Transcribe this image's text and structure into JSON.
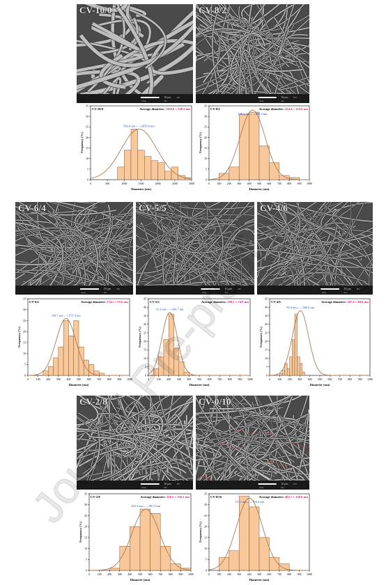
{
  "sem_labels": {
    "cv100": "CV-10/0",
    "cv82": "CV-8/2",
    "cv64": "CV-6/4",
    "cv55": "CV-5/5",
    "cv46": "CV-4/6",
    "cv28": "CV-2/8",
    "cv010": "CV-0/10"
  },
  "scale_bar": {
    "text": "10 μm",
    "meta1": "mag",
    "meta2": "det",
    "meta3": "HV"
  },
  "watermark": "Journal Pre-proof",
  "chart_data": [
    {
      "id": "cv100",
      "type": "bar",
      "sample_label": "CV-10/0",
      "avg_label": "Average diameter:",
      "avg_value": "1438.8 ± 528.2 nm",
      "range_label": "643.0 nm←→2659.0 nm",
      "xlabel": "Diameter (nm)",
      "ylabel": "Frequency (%)",
      "xlim": [
        0,
        3000
      ],
      "ylim": [
        0,
        35
      ],
      "xticks": [
        0,
        500,
        1000,
        1500,
        2000,
        2500,
        3000
      ],
      "yticks": [
        0,
        5,
        10,
        15,
        20,
        25,
        30,
        35
      ],
      "bin_start": 800,
      "bin_width": 200,
      "values": [
        6,
        14,
        24,
        14,
        11,
        9,
        8,
        4,
        6,
        2,
        1
      ],
      "fit": {
        "mu": 1439,
        "sigma": 528,
        "peak": 24
      }
    },
    {
      "id": "cv82",
      "type": "bar",
      "sample_label": "CV-8/2",
      "avg_label": "Average diameter:",
      "avg_value": "434.4 ± 125.9 nm",
      "range_label": "146.3 nm←→835.3 nm",
      "xlabel": "Diameter (nm)",
      "ylabel": "Frequency (%)",
      "xlim": [
        0,
        1000
      ],
      "ylim": [
        0,
        35
      ],
      "xticks": [
        0,
        100,
        200,
        300,
        400,
        500,
        600,
        700,
        800,
        900,
        1000
      ],
      "yticks": [
        0,
        5,
        10,
        15,
        20,
        25,
        30,
        35
      ],
      "bin_start": 100,
      "bin_width": 100,
      "values": [
        3,
        6,
        31,
        32,
        16,
        8,
        2,
        1
      ],
      "fit": {
        "mu": 434,
        "sigma": 126,
        "peak": 33
      }
    },
    {
      "id": "cv64",
      "type": "bar",
      "sample_label": "CV-6/4",
      "avg_label": "Average diameter:",
      "avg_value": "374.5 ± 97.6 nm",
      "range_label": "146.7 nm←→671.9 nm",
      "xlabel": "Diameter (nm)",
      "ylabel": "Frequency (%)",
      "xlim": [
        0,
        1000
      ],
      "ylim": [
        0,
        35
      ],
      "xticks": [
        0,
        100,
        200,
        300,
        400,
        500,
        600,
        700,
        800,
        900,
        1000
      ],
      "yticks": [
        0,
        5,
        10,
        15,
        20,
        25,
        30,
        35
      ],
      "bin_start": 150,
      "bin_width": 50,
      "values": [
        2,
        4,
        8,
        13,
        25,
        18,
        25,
        13,
        7,
        5,
        2,
        1
      ],
      "fit": {
        "mu": 375,
        "sigma": 98,
        "peak": 26
      }
    },
    {
      "id": "cv55",
      "type": "bar",
      "sample_label": "CV-5/5",
      "avg_label": "Average diameter:",
      "avg_value": "208.5 ± 74.9 nm",
      "range_label": "41.3 nm←→436.7 nm",
      "xlabel": "Diameter (nm)",
      "ylabel": "Frequency (%)",
      "xlim": [
        0,
        1000
      ],
      "ylim": [
        0,
        45
      ],
      "xticks": [
        0,
        100,
        200,
        300,
        400,
        500,
        600,
        700,
        800,
        900,
        1000
      ],
      "yticks": [
        0,
        5,
        10,
        15,
        20,
        25,
        30,
        35,
        40,
        45
      ],
      "bin_start": 50,
      "bin_width": 50,
      "values": [
        4,
        11,
        21,
        36,
        16,
        8,
        2
      ],
      "fit": {
        "mu": 209,
        "sigma": 75,
        "peak": 37
      }
    },
    {
      "id": "cv46",
      "type": "bar",
      "sample_label": "CV-4/6",
      "avg_label": "Average diameter:",
      "avg_value": "307.4 ± 80.9 nm",
      "range_label": "93.3 nm←→500.0 nm",
      "xlabel": "Diameter (nm)",
      "ylabel": "Frequency (%)",
      "xlim": [
        0,
        1000
      ],
      "ylim": [
        0,
        45
      ],
      "xticks": [
        0,
        100,
        200,
        300,
        400,
        500,
        600,
        700,
        800,
        900,
        1000
      ],
      "yticks": [
        0,
        5,
        10,
        15,
        20,
        25,
        30,
        35,
        40,
        45
      ],
      "bin_start": 100,
      "bin_width": 25,
      "values": [
        1,
        3,
        7,
        4,
        11,
        21,
        36,
        11,
        7,
        2
      ],
      "fit": {
        "mu": 307,
        "sigma": 81,
        "peak": 38
      }
    },
    {
      "id": "cv28",
      "type": "bar",
      "sample_label": "CV-2/8",
      "avg_label": "Average diameter:",
      "avg_value": "556.5 ± 136.1 nm",
      "range_label": "263.5 nm←→981.4 nm",
      "xlabel": "Diameter (nm)",
      "ylabel": "Frequency (%)",
      "xlim": [
        0,
        1000
      ],
      "ylim": [
        0,
        35
      ],
      "xticks": [
        0,
        100,
        200,
        300,
        400,
        500,
        600,
        700,
        800,
        900,
        1000
      ],
      "yticks": [
        0,
        5,
        10,
        15,
        20,
        25,
        30,
        35
      ],
      "bin_start": 200,
      "bin_width": 100,
      "values": [
        1,
        11,
        20,
        28,
        26,
        11,
        3,
        1
      ],
      "fit": {
        "mu": 557,
        "sigma": 136,
        "peak": 28
      }
    },
    {
      "id": "cv010",
      "type": "bar",
      "sample_label": "CV-0/10",
      "avg_label": "Average diameter:",
      "avg_value": "402.7 ± 129.6 nm",
      "range_label": "117.1 nm←→794.3 nm",
      "xlabel": "Diameter (nm)",
      "ylabel": "Frequency (%)",
      "xlim": [
        0,
        1000
      ],
      "ylim": [
        0,
        35
      ],
      "xticks": [
        0,
        100,
        200,
        300,
        400,
        500,
        600,
        700,
        800,
        900,
        1000
      ],
      "yticks": [
        0,
        5,
        10,
        15,
        20,
        25,
        30,
        35
      ],
      "bin_start": 100,
      "bin_width": 100,
      "values": [
        6,
        9,
        34,
        29,
        15,
        6,
        3
      ],
      "fit": {
        "mu": 403,
        "sigma": 130,
        "peak": 33
      }
    }
  ]
}
